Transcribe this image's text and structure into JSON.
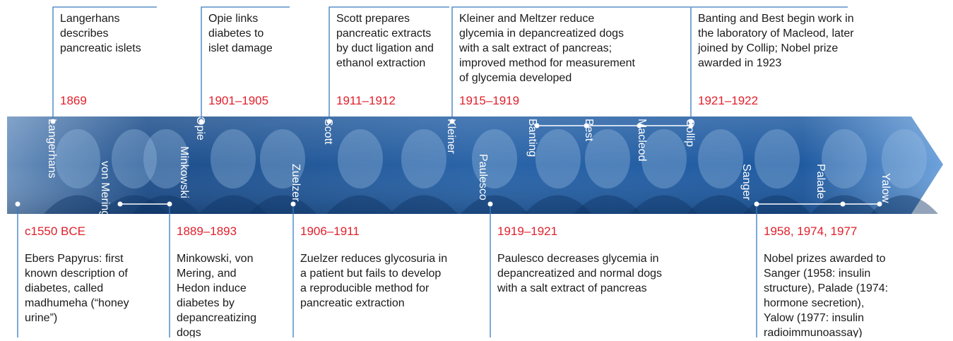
{
  "top_events": [
    {
      "year": "1869",
      "lines": [
        "Langerhans",
        "describes",
        "pancreatic islets"
      ]
    },
    {
      "year": "1901–1905",
      "lines": [
        "Opie links",
        "diabetes to",
        "islet damage"
      ]
    },
    {
      "year": "1911–1912",
      "lines": [
        "Scott prepares",
        "pancreatic extracts",
        "by duct ligation and",
        "ethanol extraction"
      ]
    },
    {
      "year": "1915–1919",
      "lines": [
        "Kleiner and Meltzer reduce",
        "glycemia in depancreatized dogs",
        "with a salt extract of pancreas;",
        "improved method for measurement",
        "of glycemia developed"
      ]
    },
    {
      "year": "1921–1922",
      "lines": [
        "Banting and Best begin work in",
        "the laboratory of Macleod, later",
        "joined by Collip; Nobel prize",
        "awarded in 1923"
      ]
    }
  ],
  "bottom_events": [
    {
      "year": "c1550 BCE",
      "lines": [
        "Ebers Papyrus: first",
        "known description of",
        "diabetes, called",
        "madhumeha (“honey",
        "urine”)"
      ]
    },
    {
      "year": "1889–1893",
      "lines": [
        "Minkowski, von",
        "Mering, and",
        "Hedon induce",
        "diabetes by",
        "depancreatizing",
        "dogs"
      ]
    },
    {
      "year": "1906–1911",
      "lines": [
        "Zuelzer reduces glycosuria in",
        "a patient but fails to develop",
        "a reproducible method for",
        "pancreatic extraction"
      ]
    },
    {
      "year": "1919–1921",
      "lines": [
        "Paulesco decreases glycemia in",
        "depancreatized and normal dogs",
        "with a salt extract of pancreas"
      ]
    },
    {
      "year": "1958, 1974, 1977",
      "lines": [
        "Nobel prizes awarded to",
        "Sanger (1958: insulin",
        "structure), Palade (1974:",
        "hormone secretion),",
        "Yalow (1977: insulin",
        "radioimmunoassay)"
      ]
    }
  ],
  "names": [
    "Langerhans",
    "von Mering",
    "Minkowski",
    "Opie",
    "Zuelzer",
    "Scott",
    "Kleiner",
    "Paulesco",
    "Banting",
    "Best",
    "Macleod",
    "Collip",
    "Sanger",
    "Palade",
    "Yalow"
  ]
}
